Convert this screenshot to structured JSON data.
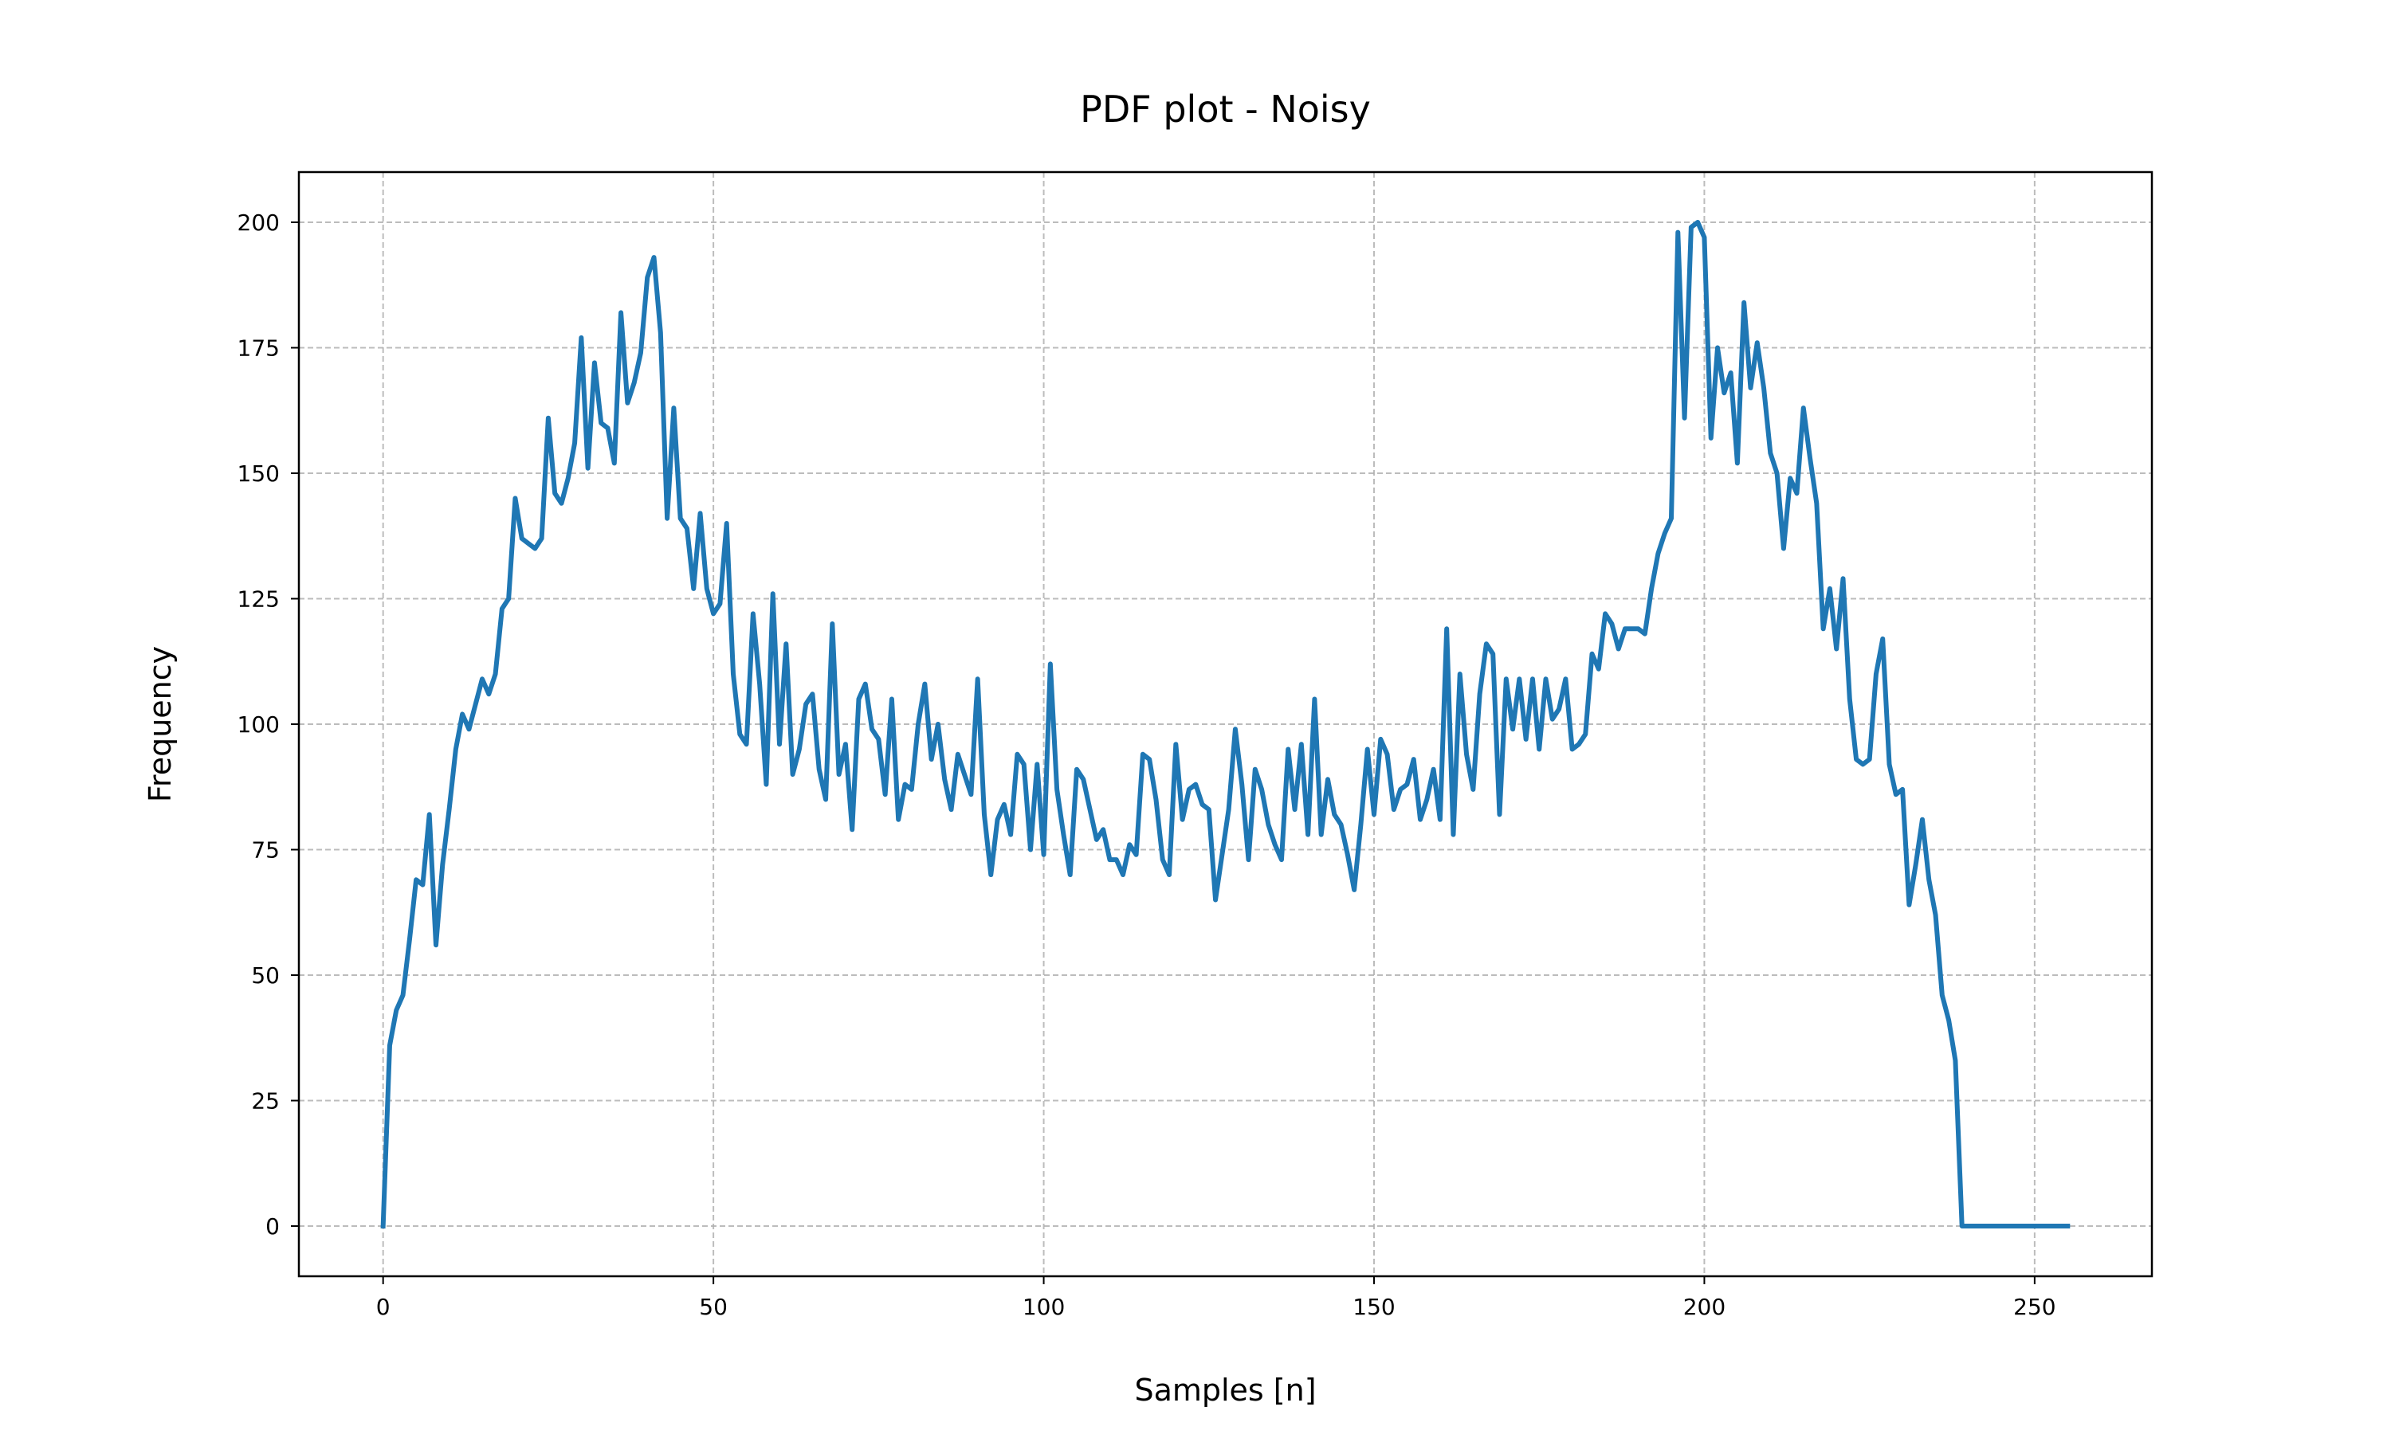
{
  "chart_data": {
    "type": "line",
    "title": "PDF plot - Noisy",
    "xlabel": "Samples [n]",
    "ylabel": "Frequency",
    "xlim": [
      -12.75,
      267.75
    ],
    "ylim": [
      -10,
      210
    ],
    "xticks": [
      0,
      50,
      100,
      150,
      200,
      250
    ],
    "yticks": [
      0,
      25,
      50,
      75,
      100,
      125,
      150,
      175,
      200
    ],
    "grid": true,
    "grid_style": "dashed",
    "line_color": "#1f77b4",
    "series": [
      {
        "values": [
          0,
          36,
          43,
          46,
          57,
          69,
          68,
          82,
          56,
          72,
          83,
          95,
          102,
          99,
          104,
          109,
          106,
          110,
          123,
          125,
          145,
          137,
          136,
          135,
          137,
          161,
          146,
          144,
          149,
          156,
          177,
          151,
          172,
          160,
          159,
          152,
          182,
          164,
          168,
          174,
          189,
          193,
          178,
          141,
          163,
          141,
          139,
          127,
          142,
          127,
          122,
          124,
          140,
          110,
          98,
          96,
          122,
          108,
          88,
          126,
          96,
          116,
          90,
          95,
          104,
          106,
          91,
          85,
          120,
          90,
          96,
          79,
          105,
          108,
          99,
          97,
          86,
          105,
          81,
          88,
          87,
          100,
          108,
          93,
          100,
          89,
          83,
          94,
          90,
          86,
          109,
          82,
          70,
          81,
          84,
          78,
          94,
          92,
          75,
          92,
          74,
          112,
          87,
          78,
          70,
          91,
          89,
          83,
          77,
          79,
          73,
          73,
          70,
          76,
          74,
          94,
          93,
          85,
          73,
          70,
          96,
          81,
          87,
          88,
          84,
          83,
          65,
          74,
          83,
          99,
          88,
          73,
          91,
          87,
          80,
          76,
          73,
          95,
          83,
          96,
          78,
          105,
          78,
          89,
          82,
          80,
          74,
          67,
          80,
          95,
          82,
          97,
          94,
          83,
          87,
          88,
          93,
          81,
          85,
          91,
          81,
          119,
          78,
          110,
          94,
          87,
          106,
          116,
          114,
          82,
          109,
          99,
          109,
          97,
          109,
          95,
          109,
          101,
          103,
          109,
          95,
          96,
          98,
          114,
          111,
          122,
          120,
          115,
          119,
          119,
          119,
          118,
          127,
          134,
          138,
          141,
          198,
          161,
          199,
          200,
          197,
          157,
          175,
          166,
          170,
          152,
          184,
          167,
          176,
          167,
          154,
          150,
          135,
          149,
          146,
          163,
          153,
          144,
          119,
          127,
          115,
          129,
          105,
          93,
          92,
          93,
          110,
          117,
          92,
          86,
          87,
          64,
          72,
          81,
          69,
          62,
          46,
          41,
          33,
          0,
          0,
          0,
          0,
          0,
          0,
          0,
          0,
          0,
          0,
          0,
          0,
          0,
          0,
          0,
          0,
          0
        ]
      }
    ]
  }
}
